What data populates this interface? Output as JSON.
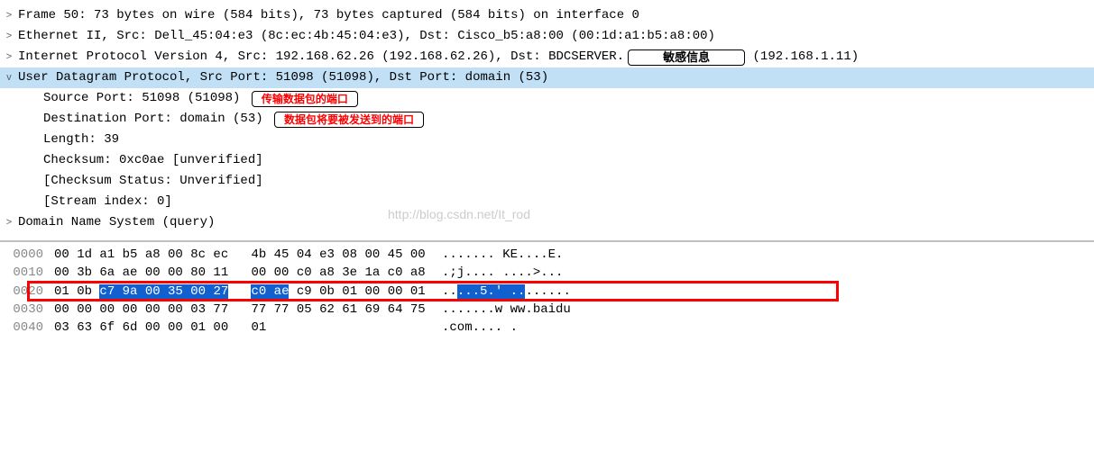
{
  "chevrons": {
    "collapsed": ">",
    "expanded": "v"
  },
  "tree": {
    "row0": "Frame 50: 73 bytes on wire (584 bits), 73 bytes captured (584 bits) on interface 0",
    "row1": "Ethernet II, Src: Dell_45:04:e3 (8c:ec:4b:45:04:e3), Dst: Cisco_b5:a8:00 (00:1d:a1:b5:a8:00)",
    "row2_pre": "Internet Protocol Version 4, Src: 192.168.62.26 (192.168.62.26), Dst: BDCSERVER.",
    "row2_badge": "敏感信息",
    "row2_post": " (192.168.1.11)",
    "row3": "User Datagram Protocol, Src Port: 51098 (51098), Dst Port: domain (53)",
    "row3_a_pre": "Source Port: 51098 (51098) ",
    "row3_a_badge": "传输数据包的端口",
    "row3_b_pre": "Destination Port: domain (53) ",
    "row3_b_badge": "数据包将要被发送到的端口",
    "row3_c": "Length: 39",
    "row3_d": "Checksum: 0xc0ae [unverified]",
    "row3_e": "[Checksum Status: Unverified]",
    "row3_f": "[Stream index: 0]",
    "row4": "Domain Name System (query)"
  },
  "hex": {
    "rows": [
      {
        "offset": "0000",
        "b1": "00 1d a1 b5 a8 00 8c ec",
        "b2": "4b 45 04 e3 08 00 45 00",
        "ascii": "....... KE....E."
      },
      {
        "offset": "0010",
        "b1": "00 3b 6a ae 00 00 80 11",
        "b2": "00 00 c0 a8 3e 1a c0 a8",
        "ascii": ".;j.... ....>..."
      },
      {
        "offset": "0020",
        "b1_pre": "01 0b ",
        "b1_sel": "c7 9a 00 35 00 27",
        "b1_post": "",
        "b2_sel": "c0 ae",
        "b2_post": " c9 0b 01 00 00 01",
        "ascii_pre": "..",
        "ascii_sel": "...5.' ..",
        "ascii_post": "......"
      },
      {
        "offset": "0030",
        "b1": "00 00 00 00 00 00 03 77",
        "b2": "77 77 05 62 61 69 64 75",
        "ascii": ".......w ww.baidu"
      },
      {
        "offset": "0040",
        "b1": "03 63 6f 6d 00 00 01 00",
        "b2": "01",
        "ascii": ".com.... ."
      }
    ]
  },
  "watermark": "http://blog.csdn.net/It_rod",
  "colors": {
    "highlight_bg": "#c1dff5",
    "sel_bg": "#1060d0",
    "sel_fg": "#ffffff",
    "red": "#ff0000",
    "offset_fg": "#888888"
  }
}
